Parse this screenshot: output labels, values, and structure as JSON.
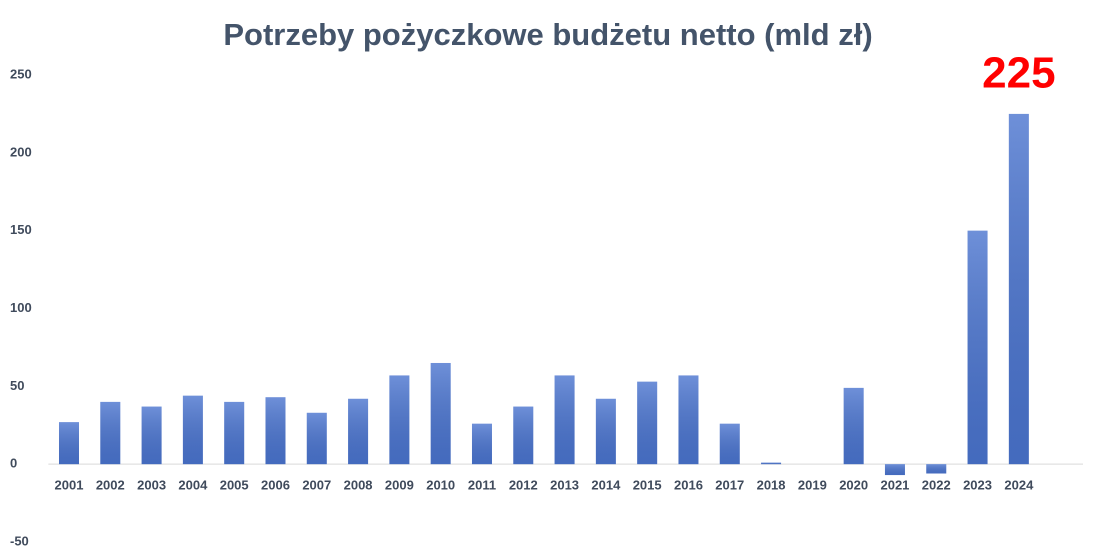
{
  "chart_data": {
    "type": "bar",
    "title": "Potrzeby pożyczkowe budżetu netto (mld zł)",
    "categories": [
      "2001",
      "2002",
      "2003",
      "2004",
      "2005",
      "2006",
      "2007",
      "2008",
      "2009",
      "2010",
      "2011",
      "2012",
      "2013",
      "2014",
      "2015",
      "2016",
      "2017",
      "2018",
      "2019",
      "2020",
      "2021",
      "2022",
      "2023",
      "2024"
    ],
    "values": [
      27,
      40,
      37,
      44,
      40,
      43,
      33,
      42,
      57,
      65,
      26,
      37,
      57,
      42,
      53,
      57,
      26,
      1,
      0,
      49,
      -7,
      -6,
      150,
      225
    ],
    "color": "#4a74cf",
    "label_color": "#ff0000",
    "ylim": [
      -50,
      250
    ],
    "yticks": [
      -50,
      0,
      50,
      100,
      150,
      200,
      250
    ],
    "grid": false
  }
}
